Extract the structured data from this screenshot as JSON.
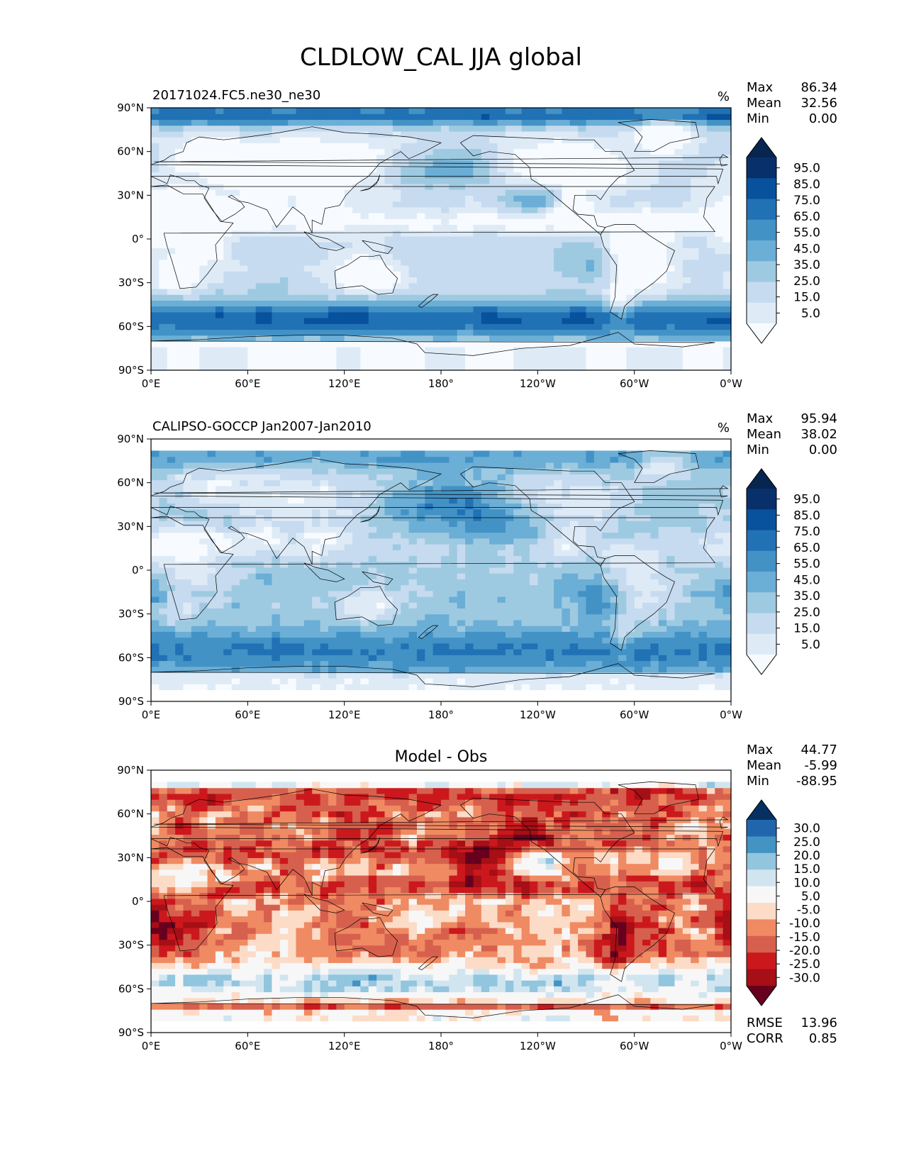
{
  "figure_title": "CLDLOW_CAL JJA global",
  "colors": {
    "blues": [
      "#f7fbff",
      "#deebf7",
      "#c6dbef",
      "#9ecae1",
      "#6baed6",
      "#4292c6",
      "#2171b5",
      "#08519c",
      "#08306b",
      "#06254f"
    ],
    "rdbu": [
      "#67001f",
      "#a50f15",
      "#cb181d",
      "#d6604d",
      "#ef8a62",
      "#fcdbc7",
      "#f7f7f7",
      "#d1e5f0",
      "#92c5de",
      "#4393c3",
      "#2166ac",
      "#053061"
    ],
    "land_outline": "#000000"
  },
  "chart_data": [
    {
      "type": "heatmap",
      "id": "test",
      "subtitle": "20171024.FC5.ne30_ne30",
      "center_title": "",
      "units": "%",
      "stats": [
        {
          "label": "Max",
          "value": "86.34"
        },
        {
          "label": "Mean",
          "value": "32.56"
        },
        {
          "label": "Min",
          "value": "0.00"
        }
      ],
      "footer_stats": [],
      "colormap": "blues",
      "colorbar_levels": [
        0,
        10,
        20,
        30,
        40,
        50,
        60,
        70,
        80,
        90,
        100
      ],
      "colorbar_ticks": [
        "5.0",
        "15.0",
        "25.0",
        "35.0",
        "45.0",
        "55.0",
        "65.0",
        "75.0",
        "85.0",
        "95.0"
      ],
      "x_ticks": [
        "0°E",
        "60°E",
        "120°E",
        "180°",
        "120°W",
        "60°W",
        "0°W"
      ],
      "y_ticks": [
        "90°N",
        "60°N",
        "30°N",
        "0°",
        "30°S",
        "60°S",
        "90°S"
      ],
      "x_range": [
        0,
        360
      ],
      "y_range": [
        -90,
        90
      ],
      "data_lat_range": [
        -90,
        90
      ]
    },
    {
      "type": "heatmap",
      "id": "reference",
      "subtitle": "CALIPSO-GOCCP Jan2007-Jan2010",
      "center_title": "",
      "units": "%",
      "stats": [
        {
          "label": "Max",
          "value": "95.94"
        },
        {
          "label": "Mean",
          "value": "38.02"
        },
        {
          "label": "Min",
          "value": "0.00"
        }
      ],
      "footer_stats": [],
      "colormap": "blues",
      "colorbar_levels": [
        0,
        10,
        20,
        30,
        40,
        50,
        60,
        70,
        80,
        90,
        100
      ],
      "colorbar_ticks": [
        "5.0",
        "15.0",
        "25.0",
        "35.0",
        "45.0",
        "55.0",
        "65.0",
        "75.0",
        "85.0",
        "95.0"
      ],
      "x_ticks": [
        "0°E",
        "60°E",
        "120°E",
        "180°",
        "120°W",
        "60°W",
        "0°W"
      ],
      "y_ticks": [
        "90°N",
        "60°N",
        "30°N",
        "0°",
        "30°S",
        "60°S",
        "90°S"
      ],
      "x_range": [
        0,
        360
      ],
      "y_range": [
        -90,
        90
      ],
      "data_lat_range": [
        -82,
        82
      ]
    },
    {
      "type": "heatmap",
      "id": "difference",
      "subtitle": "",
      "center_title": "Model - Obs",
      "units": "",
      "stats": [
        {
          "label": "Max",
          "value": "44.77"
        },
        {
          "label": "Mean",
          "value": "-5.99"
        },
        {
          "label": "Min",
          "value": "-88.95"
        }
      ],
      "footer_stats": [
        {
          "label": "RMSE",
          "value": "13.96"
        },
        {
          "label": "CORR",
          "value": "0.85"
        }
      ],
      "colormap": "rdbu",
      "colorbar_levels": [
        -35,
        -30,
        -25,
        -20,
        -15,
        -10,
        -5,
        5,
        10,
        15,
        20,
        25,
        30
      ],
      "colorbar_ticks": [
        "-30.0",
        "-25.0",
        "-20.0",
        "-15.0",
        "-10.0",
        "-5.0",
        "5.0",
        "10.0",
        "15.0",
        "20.0",
        "25.0",
        "30.0"
      ],
      "x_ticks": [
        "0°E",
        "60°E",
        "120°E",
        "180°",
        "120°W",
        "60°W",
        "0°W"
      ],
      "y_ticks": [
        "90°N",
        "60°N",
        "30°N",
        "0°",
        "30°S",
        "60°S",
        "90°S"
      ],
      "x_range": [
        0,
        360
      ],
      "y_range": [
        -90,
        90
      ],
      "data_lat_range": [
        -82,
        82
      ]
    }
  ]
}
